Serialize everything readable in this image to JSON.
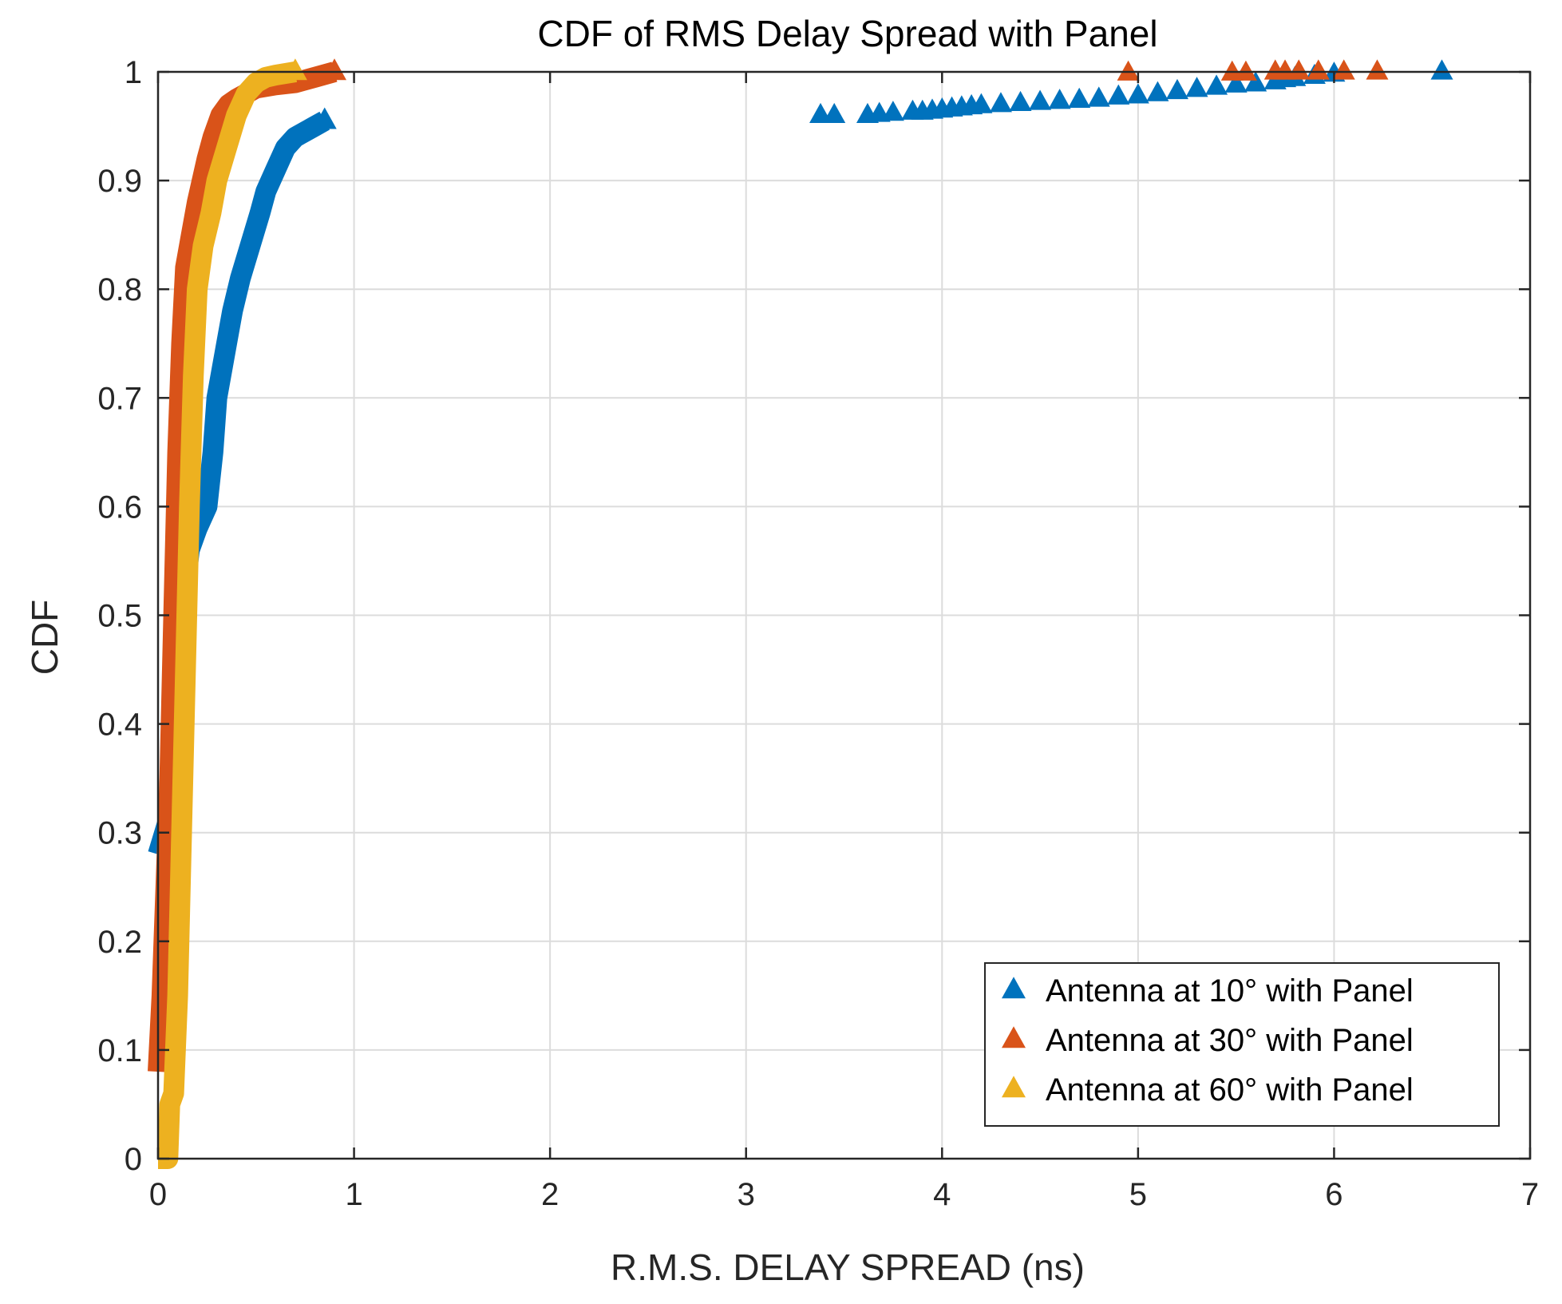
{
  "chart_data": {
    "type": "line",
    "title": "CDF of RMS Delay Spread with Panel",
    "xlabel": "R.M.S. DELAY SPREAD (ns)",
    "ylabel": "CDF",
    "xlim": [
      0,
      7
    ],
    "ylim": [
      0,
      1
    ],
    "xticks": [
      "0",
      "1",
      "2",
      "3",
      "4",
      "5",
      "6",
      "7"
    ],
    "yticks": [
      "0",
      "0.1",
      "0.2",
      "0.3",
      "0.4",
      "0.5",
      "0.6",
      "0.7",
      "0.8",
      "0.9",
      "1"
    ],
    "grid": true,
    "legend_position": "bottom-right",
    "marker": "triangle",
    "series": [
      {
        "name": "Antenna at 10° with Panel",
        "color": "#0072BD",
        "line": [
          [
            0.0,
            0.28
          ],
          [
            0.05,
            0.31
          ],
          [
            0.08,
            0.33
          ],
          [
            0.1,
            0.4
          ],
          [
            0.12,
            0.47
          ],
          [
            0.14,
            0.53
          ],
          [
            0.16,
            0.56
          ],
          [
            0.2,
            0.58
          ],
          [
            0.25,
            0.6
          ],
          [
            0.28,
            0.65
          ],
          [
            0.3,
            0.7
          ],
          [
            0.35,
            0.75
          ],
          [
            0.38,
            0.78
          ],
          [
            0.42,
            0.81
          ],
          [
            0.47,
            0.84
          ],
          [
            0.52,
            0.87
          ],
          [
            0.55,
            0.89
          ],
          [
            0.6,
            0.91
          ],
          [
            0.65,
            0.93
          ],
          [
            0.7,
            0.94
          ],
          [
            0.75,
            0.945
          ],
          [
            0.8,
            0.95
          ],
          [
            0.85,
            0.955
          ]
        ],
        "points": [
          [
            3.38,
            0.96
          ],
          [
            3.45,
            0.96
          ],
          [
            3.62,
            0.96
          ],
          [
            3.68,
            0.961
          ],
          [
            3.75,
            0.962
          ],
          [
            3.85,
            0.963
          ],
          [
            3.9,
            0.963
          ],
          [
            3.95,
            0.964
          ],
          [
            4.0,
            0.965
          ],
          [
            4.05,
            0.966
          ],
          [
            4.1,
            0.967
          ],
          [
            4.15,
            0.968
          ],
          [
            4.2,
            0.969
          ],
          [
            4.3,
            0.97
          ],
          [
            4.4,
            0.971
          ],
          [
            4.5,
            0.972
          ],
          [
            4.6,
            0.973
          ],
          [
            4.7,
            0.974
          ],
          [
            4.8,
            0.975
          ],
          [
            4.9,
            0.977
          ],
          [
            5.0,
            0.978
          ],
          [
            5.1,
            0.98
          ],
          [
            5.2,
            0.982
          ],
          [
            5.3,
            0.984
          ],
          [
            5.4,
            0.986
          ],
          [
            5.5,
            0.988
          ],
          [
            5.6,
            0.989
          ],
          [
            5.7,
            0.991
          ],
          [
            5.75,
            0.993
          ],
          [
            5.8,
            0.994
          ],
          [
            5.9,
            0.996
          ],
          [
            6.0,
            0.998
          ],
          [
            6.55,
            1.0
          ]
        ]
      },
      {
        "name": "Antenna at 30° with Panel",
        "color": "#D95319",
        "line": [
          [
            0.0,
            0.08
          ],
          [
            0.02,
            0.15
          ],
          [
            0.04,
            0.25
          ],
          [
            0.06,
            0.35
          ],
          [
            0.08,
            0.5
          ],
          [
            0.1,
            0.65
          ],
          [
            0.12,
            0.75
          ],
          [
            0.14,
            0.82
          ],
          [
            0.17,
            0.85
          ],
          [
            0.2,
            0.88
          ],
          [
            0.25,
            0.92
          ],
          [
            0.28,
            0.94
          ],
          [
            0.32,
            0.96
          ],
          [
            0.36,
            0.97
          ],
          [
            0.4,
            0.975
          ],
          [
            0.45,
            0.98
          ],
          [
            0.5,
            0.985
          ],
          [
            0.6,
            0.988
          ],
          [
            0.7,
            0.99
          ],
          [
            0.8,
            0.995
          ],
          [
            0.9,
            1.0
          ]
        ],
        "points": [
          [
            4.95,
            0.999
          ],
          [
            5.48,
            0.999
          ],
          [
            5.55,
            0.999
          ],
          [
            5.7,
            1.0
          ],
          [
            5.75,
            1.0
          ],
          [
            5.82,
            1.0
          ],
          [
            5.92,
            1.0
          ],
          [
            6.05,
            1.0
          ],
          [
            6.22,
            1.0
          ]
        ]
      },
      {
        "name": "Antenna at 60° with Panel",
        "color": "#EDB120",
        "line": [
          [
            0.0,
            0.0
          ],
          [
            0.05,
            0.0
          ],
          [
            0.06,
            0.05
          ],
          [
            0.08,
            0.06
          ],
          [
            0.1,
            0.15
          ],
          [
            0.12,
            0.3
          ],
          [
            0.14,
            0.45
          ],
          [
            0.16,
            0.6
          ],
          [
            0.18,
            0.72
          ],
          [
            0.2,
            0.8
          ],
          [
            0.23,
            0.84
          ],
          [
            0.27,
            0.87
          ],
          [
            0.3,
            0.9
          ],
          [
            0.35,
            0.93
          ],
          [
            0.4,
            0.96
          ],
          [
            0.45,
            0.98
          ],
          [
            0.5,
            0.99
          ],
          [
            0.55,
            0.995
          ],
          [
            0.6,
            0.997
          ],
          [
            0.7,
            1.0
          ]
        ],
        "points": []
      }
    ]
  }
}
